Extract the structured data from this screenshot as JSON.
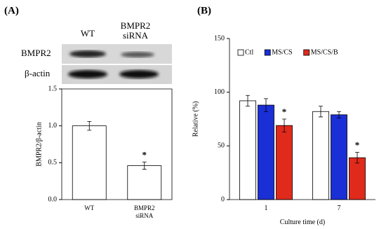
{
  "figure": {
    "panel_labels": [
      "(A)",
      "(B)"
    ],
    "blot": {
      "lanes": [
        "WT",
        "BMPR2\nsiRNA"
      ],
      "rows": [
        "BMPR2",
        "β-actin"
      ]
    }
  },
  "chart_data": [
    {
      "type": "bar",
      "categories": [
        "WT",
        "BMPR2\nsiRNA"
      ],
      "values": [
        1.0,
        0.46
      ],
      "errors": [
        0.06,
        0.05
      ],
      "color": "#ffffff",
      "ylabel": "BMPR2/β-actin",
      "ylim": [
        0,
        1.5
      ],
      "yticks": [
        {
          "value": 0,
          "label": "0.0"
        },
        {
          "value": 0.5,
          "label": "0.5"
        },
        {
          "value": 1,
          "label": "1.0"
        },
        {
          "value": 1.5,
          "label": "1.5"
        }
      ],
      "annotations": [
        {
          "text": "*",
          "category": "BMPR2\nsiRNA"
        }
      ]
    },
    {
      "type": "bar",
      "categories": [
        "1",
        "7"
      ],
      "xlabel": "Culture time (d)",
      "ylabel": "Relative (%)",
      "series": [
        {
          "name": "Ctl",
          "color": "#ffffff",
          "values": [
            92,
            82
          ],
          "errors": [
            5,
            5
          ]
        },
        {
          "name": "MS/CS",
          "color": "#1a2fd6",
          "values": [
            88,
            79
          ],
          "errors": [
            6,
            3
          ]
        },
        {
          "name": "MS/CS/B",
          "color": "#e02a1c",
          "values": [
            69,
            39
          ],
          "errors": [
            6,
            5
          ]
        }
      ],
      "ylim": [
        0,
        150
      ],
      "yticks": [
        0,
        50,
        100,
        150
      ],
      "legend": "top",
      "annotations": [
        {
          "text": "*",
          "category": "1",
          "series": "MS/CS/B"
        },
        {
          "text": "*",
          "category": "7",
          "series": "MS/CS/B"
        }
      ]
    }
  ]
}
